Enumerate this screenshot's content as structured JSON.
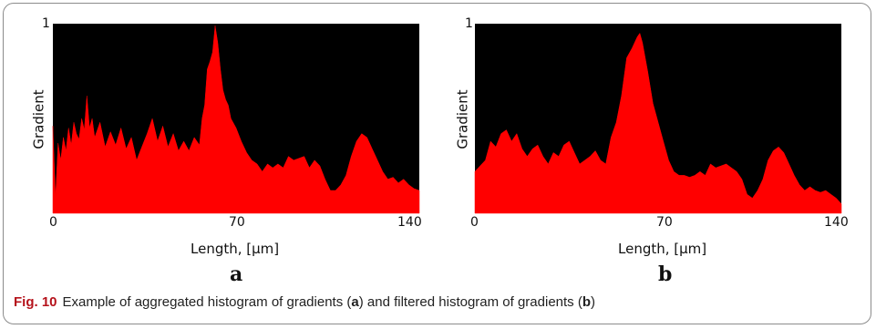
{
  "caption": {
    "fig_label": "Fig. 10",
    "text_1": "Example of aggregated histogram of gradients (",
    "ref_a": "a",
    "text_2": ") and filtered histogram of gradients (",
    "ref_b": "b",
    "text_3": ")"
  },
  "colors": {
    "background": "#000000",
    "fill": "#ff0000"
  },
  "chart_data": [
    {
      "type": "area",
      "panel_label": "a",
      "ylabel": "Gradient",
      "xlabel": "Length, [µm]",
      "xlim": [
        0,
        140
      ],
      "ylim": [
        0,
        1
      ],
      "x_ticks": [
        "0",
        "70",
        "140"
      ],
      "y_ticks": [
        "1"
      ],
      "x": [
        0,
        1,
        2,
        3,
        4,
        5,
        6,
        7,
        8,
        9,
        10,
        11,
        12,
        13,
        14,
        15,
        16,
        18,
        20,
        22,
        24,
        26,
        28,
        30,
        32,
        34,
        36,
        38,
        40,
        42,
        44,
        46,
        48,
        50,
        52,
        54,
        56,
        57,
        58,
        59,
        60,
        61,
        62,
        63,
        64,
        65,
        66,
        67,
        68,
        70,
        72,
        74,
        76,
        78,
        80,
        82,
        84,
        86,
        88,
        90,
        92,
        94,
        96,
        98,
        100,
        102,
        104,
        106,
        108,
        110,
        112,
        114,
        116,
        118,
        120,
        122,
        124,
        126,
        128,
        130,
        132,
        134,
        136,
        138,
        140
      ],
      "values": [
        0.46,
        0.08,
        0.37,
        0.28,
        0.4,
        0.33,
        0.45,
        0.36,
        0.48,
        0.42,
        0.39,
        0.5,
        0.44,
        0.62,
        0.45,
        0.5,
        0.4,
        0.48,
        0.35,
        0.43,
        0.36,
        0.45,
        0.34,
        0.4,
        0.28,
        0.35,
        0.42,
        0.5,
        0.38,
        0.46,
        0.35,
        0.42,
        0.33,
        0.38,
        0.33,
        0.4,
        0.36,
        0.5,
        0.57,
        0.76,
        0.8,
        0.85,
        0.99,
        0.9,
        0.76,
        0.65,
        0.6,
        0.57,
        0.5,
        0.45,
        0.38,
        0.32,
        0.28,
        0.26,
        0.22,
        0.26,
        0.24,
        0.26,
        0.24,
        0.3,
        0.28,
        0.29,
        0.3,
        0.24,
        0.28,
        0.25,
        0.18,
        0.12,
        0.12,
        0.15,
        0.2,
        0.3,
        0.38,
        0.42,
        0.4,
        0.34,
        0.28,
        0.22,
        0.18,
        0.19,
        0.16,
        0.18,
        0.15,
        0.13,
        0.12
      ]
    },
    {
      "type": "area",
      "panel_label": "b",
      "ylabel": "Gradient",
      "xlabel": "Length, [µm]",
      "xlim": [
        0,
        140
      ],
      "ylim": [
        0,
        1
      ],
      "x_ticks": [
        "0",
        "70",
        "140"
      ],
      "y_ticks": [
        "1"
      ],
      "x": [
        0,
        2,
        4,
        6,
        8,
        10,
        12,
        14,
        16,
        18,
        20,
        22,
        24,
        26,
        28,
        30,
        32,
        34,
        36,
        38,
        40,
        42,
        44,
        46,
        48,
        50,
        52,
        54,
        56,
        58,
        60,
        62,
        63,
        64,
        66,
        68,
        70,
        72,
        74,
        76,
        78,
        80,
        82,
        84,
        86,
        88,
        90,
        92,
        94,
        96,
        98,
        100,
        102,
        104,
        106,
        108,
        110,
        112,
        114,
        116,
        118,
        120,
        122,
        124,
        126,
        128,
        130,
        132,
        134,
        136,
        138,
        140
      ],
      "values": [
        0.22,
        0.25,
        0.28,
        0.38,
        0.35,
        0.42,
        0.44,
        0.38,
        0.42,
        0.34,
        0.3,
        0.34,
        0.36,
        0.3,
        0.26,
        0.32,
        0.3,
        0.36,
        0.38,
        0.32,
        0.26,
        0.28,
        0.3,
        0.33,
        0.28,
        0.26,
        0.4,
        0.48,
        0.62,
        0.82,
        0.87,
        0.93,
        0.95,
        0.9,
        0.75,
        0.58,
        0.48,
        0.38,
        0.28,
        0.22,
        0.2,
        0.2,
        0.19,
        0.2,
        0.22,
        0.2,
        0.26,
        0.24,
        0.25,
        0.26,
        0.24,
        0.22,
        0.18,
        0.1,
        0.08,
        0.12,
        0.18,
        0.28,
        0.33,
        0.35,
        0.32,
        0.26,
        0.2,
        0.15,
        0.12,
        0.14,
        0.12,
        0.11,
        0.12,
        0.1,
        0.08,
        0.05
      ]
    }
  ]
}
